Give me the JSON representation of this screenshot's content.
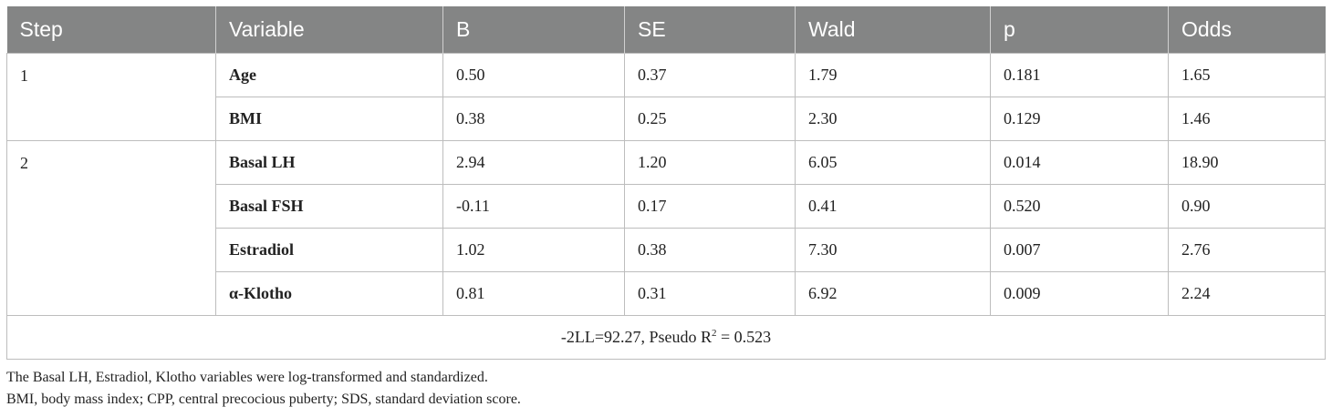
{
  "table": {
    "headers": [
      "Step",
      "Variable",
      "B",
      "SE",
      "Wald",
      "p",
      "Odds"
    ],
    "groups": [
      {
        "step": "1",
        "rows": [
          {
            "variable": "Age",
            "B": "0.50",
            "SE": "0.37",
            "Wald": "1.79",
            "p": "0.181",
            "Odds": "1.65"
          },
          {
            "variable": "BMI",
            "B": "0.38",
            "SE": "0.25",
            "Wald": "2.30",
            "p": "0.129",
            "Odds": "1.46"
          }
        ]
      },
      {
        "step": "2",
        "rows": [
          {
            "variable": "Basal LH",
            "B": "2.94",
            "SE": "1.20",
            "Wald": "6.05",
            "p": "0.014",
            "Odds": "18.90"
          },
          {
            "variable": "Basal FSH",
            "B": "-0.11",
            "SE": "0.17",
            "Wald": "0.41",
            "p": "0.520",
            "Odds": "0.90"
          },
          {
            "variable": "Estradiol",
            "B": "1.02",
            "SE": "0.38",
            "Wald": "7.30",
            "p": "0.007",
            "Odds": "2.76"
          },
          {
            "variable": "α-Klotho",
            "B": "0.81",
            "SE": "0.31",
            "Wald": "6.92",
            "p": "0.009",
            "Odds": "2.24"
          }
        ]
      }
    ],
    "footer": {
      "prefix": "-2LL=92.27, Pseudo R",
      "sup": "2",
      "suffix": " = 0.523"
    }
  },
  "notes": [
    "The Basal LH, Estradiol, Klotho variables were log-transformed and standardized.",
    "BMI, body mass index; CPP, central precocious puberty; SDS, standard deviation score."
  ],
  "colors": {
    "header_bg": "#848585",
    "header_text": "#ffffff",
    "border": "#bdbdbd"
  }
}
